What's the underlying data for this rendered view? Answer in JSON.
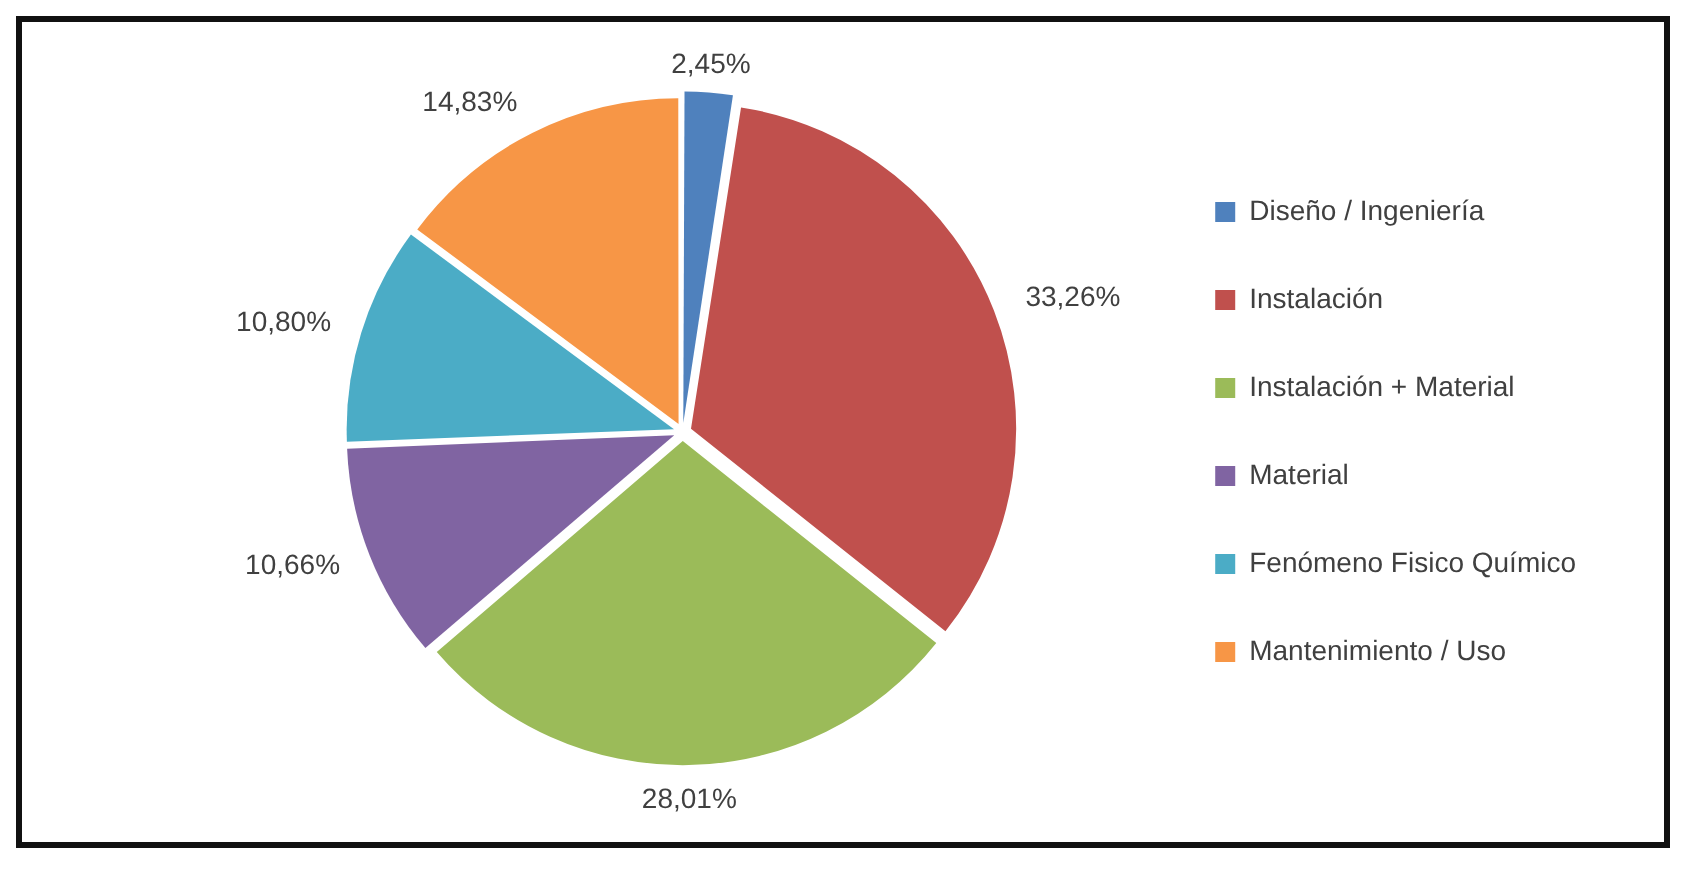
{
  "chart_data": {
    "type": "pie",
    "categories": [
      "Diseño / Ingeniería",
      "Instalación",
      "Instalación + Material",
      "Material",
      "Fenómeno Fisico Químico",
      "Mantenimiento / Uso"
    ],
    "values": [
      2.45,
      33.26,
      28.01,
      10.66,
      10.8,
      14.83
    ],
    "colors": [
      "#4f81bd",
      "#c0504d",
      "#9bbb59",
      "#8064a2",
      "#4bacc6",
      "#f79646"
    ],
    "value_labels": [
      "2,45%",
      "33,26%",
      "28,01%",
      "10,66%",
      "10,80%",
      "14,83%"
    ],
    "legend": "right"
  }
}
